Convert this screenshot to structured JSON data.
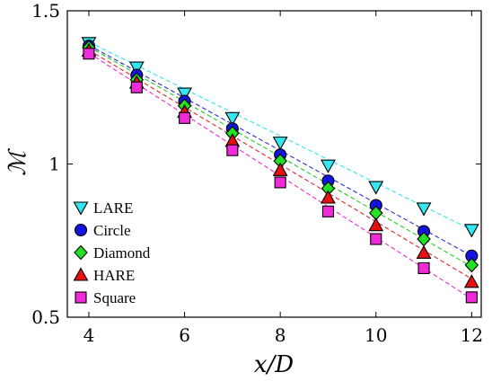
{
  "chart_data": {
    "type": "scatter",
    "xlabel": "x/D",
    "ylabel": "ℳ",
    "xlim": [
      3.55,
      12.2
    ],
    "ylim": [
      0.5,
      1.5
    ],
    "xticks": [
      4,
      6,
      8,
      10,
      12
    ],
    "yticks": [
      0.5,
      1,
      1.5
    ],
    "xtick_labels": [
      "4",
      "6",
      "8",
      "10",
      "12"
    ],
    "ytick_labels": [
      "0.5",
      "1",
      "1.5"
    ],
    "grid": false,
    "legend_position": "left",
    "x": [
      4,
      5,
      6,
      7,
      8,
      9,
      10,
      11,
      12
    ],
    "series": [
      {
        "name": "LARE",
        "marker": "triangle-down",
        "color": "#33e6f0",
        "line_color": "#33e6f0",
        "values": [
          1.395,
          1.315,
          1.23,
          1.15,
          1.07,
          0.995,
          0.925,
          0.855,
          0.785
        ],
        "fit": [
          1.398,
          0.785
        ]
      },
      {
        "name": "Circle",
        "marker": "circle",
        "color": "#1414e0",
        "line_color": "#2a2ad8",
        "values": [
          1.385,
          1.29,
          1.205,
          1.115,
          1.03,
          0.945,
          0.865,
          0.78,
          0.7
        ],
        "fit": [
          1.388,
          0.7
        ]
      },
      {
        "name": "Diamond",
        "marker": "diamond",
        "color": "#22e022",
        "line_color": "#22cc22",
        "values": [
          1.38,
          1.275,
          1.19,
          1.1,
          1.01,
          0.92,
          0.84,
          0.755,
          0.67
        ],
        "fit": [
          1.383,
          0.665
        ]
      },
      {
        "name": "HARE",
        "marker": "triangle-up",
        "color": "#e81010",
        "line_color": "#e02a2a",
        "values": [
          1.37,
          1.265,
          1.17,
          1.075,
          0.98,
          0.89,
          0.8,
          0.71,
          0.615
        ],
        "fit": [
          1.372,
          0.625
        ]
      },
      {
        "name": "Square",
        "marker": "square",
        "color": "#f02ad8",
        "line_color": "#f02ad8",
        "values": [
          1.36,
          1.25,
          1.15,
          1.045,
          0.94,
          0.845,
          0.755,
          0.66,
          0.565
        ],
        "fit": [
          1.362,
          0.56
        ]
      }
    ]
  }
}
